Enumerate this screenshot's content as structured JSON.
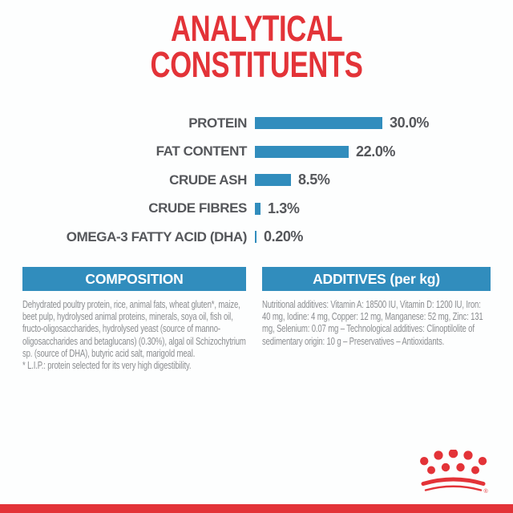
{
  "title": {
    "line1": "ANALYTICAL",
    "line2": "CONSTITUENTS",
    "color": "#e33338"
  },
  "chart_data": {
    "type": "bar",
    "orientation": "horizontal",
    "title": "ANALYTICAL CONSTITUENTS",
    "categories": [
      "PROTEIN",
      "FAT CONTENT",
      "CRUDE ASH",
      "CRUDE FIBRES",
      "OMEGA-3 FATTY ACID (DHA)"
    ],
    "values": [
      30.0,
      22.0,
      8.5,
      1.3,
      0.2
    ],
    "value_labels": [
      "30.0%",
      "22.0%",
      "8.5%",
      "1.3%",
      "0.20%"
    ],
    "unit": "%",
    "xlim": [
      0,
      30
    ],
    "bar_color": "#318dbd",
    "label_color": "#55575b",
    "grid": false,
    "legend": false
  },
  "composition": {
    "header": "COMPOSITION",
    "body": "Dehydrated poultry protein, rice, animal fats, wheat gluten*, maize, beet pulp, hydrolysed animal proteins, minerals, soya oil, fish oil, fructo-oligosaccharides, hydrolysed yeast (source of manno-oligosaccharides and betaglucans) (0.30%), algal oil Schizochytrium sp. (source of DHA), butyric acid salt, marigold meal.",
    "footnote": "* L.I.P.: protein selected for its very high digestibility."
  },
  "additives": {
    "header": "ADDITIVES (per kg)",
    "body": "Nutritional additives: Vitamin A: 18500 IU, Vitamin D: 1200 IU, Iron: 40 mg, Iodine: 4 mg, Copper: 12 mg, Manganese: 52 mg, Zinc: 131 mg, Selenium: 0.07 mg – Technological additives: Clinoptilolite of sedimentary origin: 10 g – Preservatives – Antioxidants."
  },
  "branding": {
    "crown_logo": "royal-canin-crown",
    "registered_mark": "®",
    "red": "#e33338",
    "accent_blue": "#318dbd"
  }
}
